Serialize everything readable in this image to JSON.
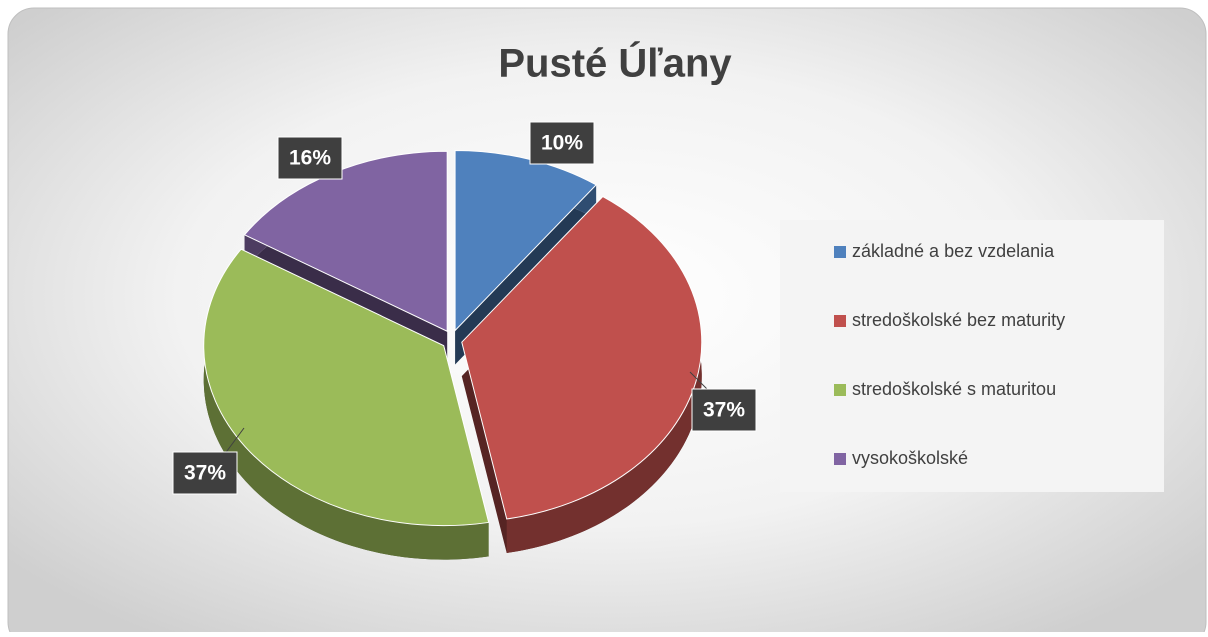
{
  "chart_data": {
    "type": "pie",
    "title": "Pusté Úľany",
    "categories": [
      "základné a bez vzdelania",
      "stredoškolské bez maturity",
      "stredoškolské s maturitou",
      "vysokoškolské"
    ],
    "values": [
      10,
      37,
      37,
      16
    ],
    "value_labels": [
      "10%",
      "37%",
      "37%",
      "16%"
    ],
    "colors": [
      "#4f81bd",
      "#c0504d",
      "#9bbb59",
      "#8064a2"
    ],
    "legend": "right"
  }
}
